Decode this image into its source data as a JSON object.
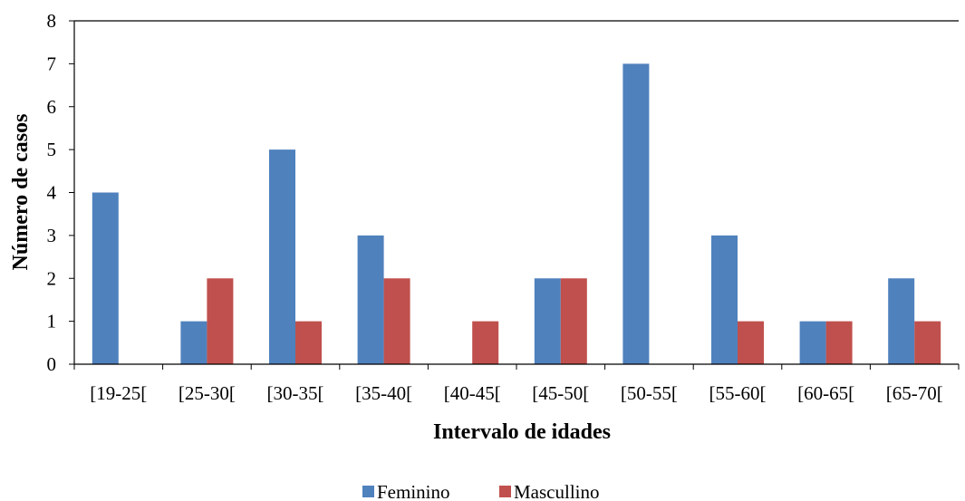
{
  "chart_data": {
    "type": "bar",
    "title": "",
    "xlabel": "Intervalo de idades",
    "ylabel": "Número de casos",
    "ylim": [
      0,
      8
    ],
    "yticks": [
      0,
      1,
      2,
      3,
      4,
      5,
      6,
      7,
      8
    ],
    "grid": false,
    "legend_position": "bottom",
    "categories": [
      "[19-25[",
      "[25-30[",
      "[30-35[",
      "[35-40[",
      "[40-45[",
      "[45-50[",
      "[50-55[",
      "[55-60[",
      "[60-65[",
      "[65-70["
    ],
    "series": [
      {
        "name": "Feminino",
        "color": "#4F81BD",
        "values": [
          4,
          1,
          5,
          3,
          0,
          2,
          7,
          3,
          1,
          2
        ]
      },
      {
        "name": "Mascullino",
        "color": "#C0504D",
        "values": [
          0,
          2,
          1,
          2,
          1,
          2,
          0,
          1,
          1,
          1
        ]
      }
    ]
  }
}
